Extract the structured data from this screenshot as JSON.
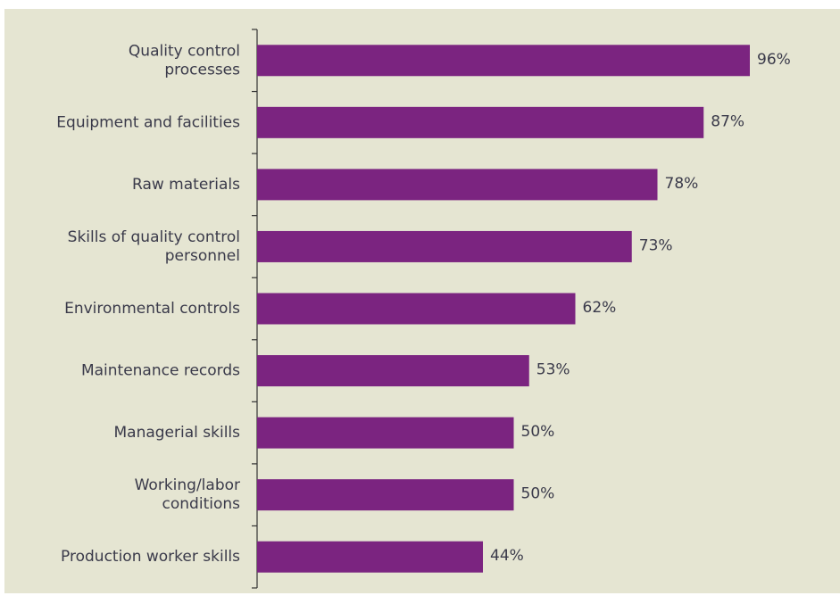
{
  "colors": {
    "background": "#e5e5d2",
    "bar": "#7b2480",
    "axis": "#333333",
    "text": "#3a3a4a"
  },
  "chart_data": {
    "type": "bar",
    "orientation": "horizontal",
    "categories": [
      "Quality control processes",
      "Equipment and facilities",
      "Raw materials",
      "Skills of quality control personnel",
      "Environmental controls",
      "Maintenance records",
      "Managerial skills",
      "Working/labor conditions",
      "Production worker skills"
    ],
    "category_label_lines": [
      [
        "Quality control",
        "processes"
      ],
      [
        "Equipment and facilities"
      ],
      [
        "Raw materials"
      ],
      [
        "Skills of quality control",
        "personnel"
      ],
      [
        "Environmental controls"
      ],
      [
        "Maintenance records"
      ],
      [
        "Managerial skills"
      ],
      [
        "Working/labor",
        "conditions"
      ],
      [
        "Production worker skills"
      ]
    ],
    "values": [
      96,
      87,
      78,
      73,
      62,
      53,
      50,
      50,
      44
    ],
    "value_labels": [
      "96%",
      "87%",
      "78%",
      "73%",
      "62%",
      "53%",
      "50%",
      "50%",
      "44%"
    ],
    "unit": "%",
    "xlim": [
      0,
      100
    ],
    "grid": false,
    "legend": "none"
  }
}
